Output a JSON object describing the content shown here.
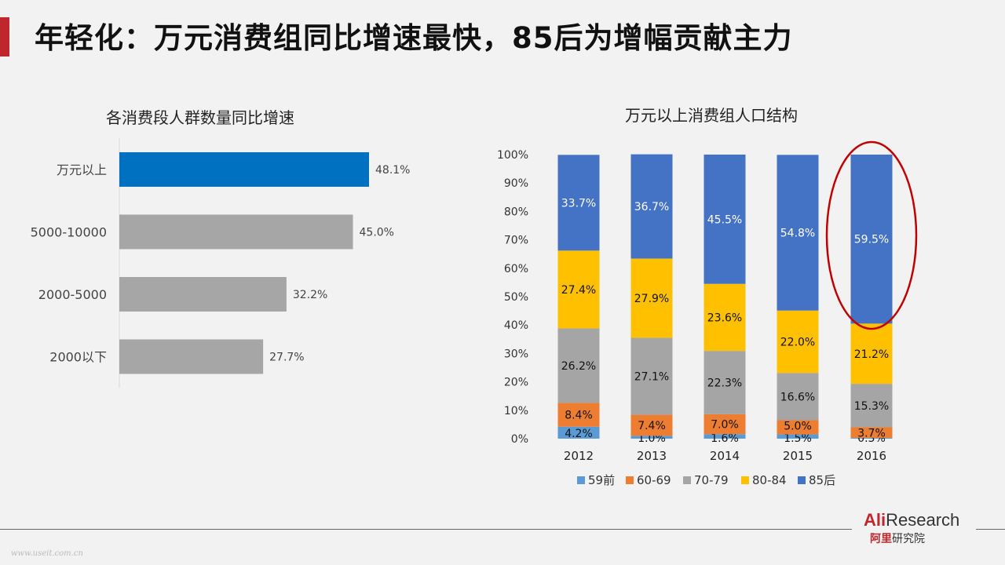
{
  "page": {
    "title": "年轻化：万元消费组同比增速最快，85后为增幅贡献主力",
    "watermark": "www.useit.com.cn"
  },
  "logo": {
    "ali": "Ali",
    "research": "Research",
    "cn_red": "阿里",
    "cn_rest": "研究院"
  },
  "chart_data": [
    {
      "type": "bar",
      "orientation": "horizontal",
      "title": "各消费段人群数量同比增速",
      "categories": [
        "万元以上",
        "5000-10000",
        "2000-5000",
        "2000以下"
      ],
      "values": [
        48.1,
        45.0,
        32.2,
        27.7
      ],
      "value_labels": [
        "48.1%",
        "45.0%",
        "32.2%",
        "27.7%"
      ],
      "colors": [
        "#0070c0",
        "#a6a6a6",
        "#a6a6a6",
        "#a6a6a6"
      ],
      "xlim": [
        0,
        60
      ]
    },
    {
      "type": "bar",
      "stacked": true,
      "title": "万元以上消费组人口结构",
      "categories": [
        "2012",
        "2013",
        "2014",
        "2015",
        "2016"
      ],
      "y_ticks": [
        "0%",
        "10%",
        "20%",
        "30%",
        "40%",
        "50%",
        "60%",
        "70%",
        "80%",
        "90%",
        "100%"
      ],
      "ylim": [
        0,
        100
      ],
      "legend_position": "bottom",
      "series": [
        {
          "name": "59前",
          "color": "#5b9bd5",
          "values": [
            4.2,
            1.0,
            1.6,
            1.5,
            0.3
          ],
          "labels": [
            "4.2%",
            "1.0%",
            "1.6%",
            "1.5%",
            "0.3%"
          ]
        },
        {
          "name": "60-69",
          "color": "#ed7d31",
          "values": [
            8.4,
            7.4,
            7.0,
            5.0,
            3.7
          ],
          "labels": [
            "8.4%",
            "7.4%",
            "7.0%",
            "5.0%",
            "3.7%"
          ]
        },
        {
          "name": "70-79",
          "color": "#a5a5a5",
          "values": [
            26.2,
            27.1,
            22.3,
            16.6,
            15.3
          ],
          "labels": [
            "26.2%",
            "27.1%",
            "22.3%",
            "16.6%",
            "15.3%"
          ]
        },
        {
          "name": "80-84",
          "color": "#ffc000",
          "values": [
            27.4,
            27.9,
            23.6,
            22.0,
            21.2
          ],
          "labels": [
            "27.4%",
            "27.9%",
            "23.6%",
            "22.0%",
            "21.2%"
          ]
        },
        {
          "name": "85后",
          "color": "#4472c4",
          "values": [
            33.7,
            36.7,
            45.5,
            54.8,
            59.5
          ],
          "labels": [
            "33.7%",
            "36.7%",
            "45.5%",
            "54.8%",
            "59.5%"
          ]
        }
      ],
      "highlight": {
        "category": "2016",
        "color": "#c00000"
      }
    }
  ]
}
